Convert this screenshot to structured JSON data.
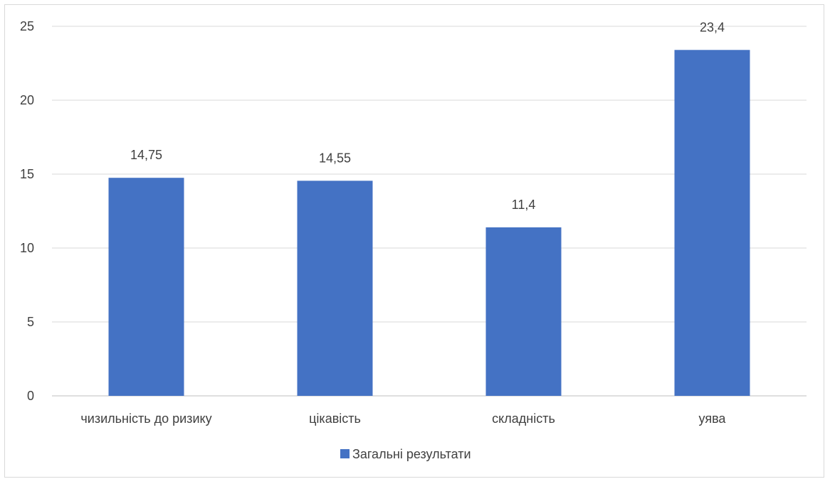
{
  "chart_data": {
    "type": "bar",
    "title": "",
    "xlabel": "",
    "ylabel": "",
    "categories": [
      "чизильність до ризику",
      "цікавість",
      "складність",
      "уява"
    ],
    "series": [
      {
        "name": "Загальні результати",
        "values": [
          14.75,
          14.55,
          11.4,
          23.4
        ],
        "value_labels": [
          "14,75",
          "14,55",
          "11,4",
          "23,4"
        ],
        "color": "#4472c4"
      }
    ],
    "ylim": [
      0,
      25
    ],
    "yticks": [
      0,
      5,
      10,
      15,
      20,
      25
    ],
    "grid": true,
    "legend": "bottom"
  }
}
